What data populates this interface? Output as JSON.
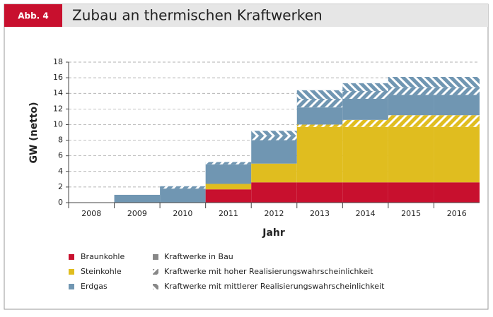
{
  "figure_label": "Abb. 4",
  "chart_data": {
    "type": "stacked-step",
    "title": "Zubau an thermischen Kraftwerken",
    "x_label": "Jahr",
    "y_label": "GW (netto)",
    "categories": [
      "2008",
      "2009",
      "2010",
      "2011",
      "2012",
      "2013",
      "2014",
      "2015",
      "2016"
    ],
    "ylim": [
      0,
      18
    ],
    "yticks": [
      0,
      2,
      4,
      6,
      8,
      10,
      12,
      14,
      16,
      18
    ],
    "grid": true,
    "statuses": [
      {
        "name": "Kraftwerke in Bau",
        "hatch": "solid",
        "key": "values"
      },
      {
        "name": "Kraftwerke mit hoher Realisierungswahrscheinlichkeit",
        "hatch": "forward",
        "key": "values_high"
      },
      {
        "name": "Kraftwerke mit mittlerer Realisierungswahrscheinlichkeit",
        "hatch": "backward",
        "key": "values_mid"
      }
    ],
    "series": [
      {
        "name": "Braunkohle",
        "color": "#c8102e",
        "values": [
          0,
          0,
          0,
          1.7,
          2.6,
          2.6,
          2.6,
          2.6,
          2.6
        ],
        "values_high": [
          0,
          0,
          0,
          0,
          0,
          0,
          0,
          0,
          0
        ],
        "values_mid": [
          0,
          0,
          0,
          0,
          0,
          0,
          0,
          0,
          0
        ]
      },
      {
        "name": "Steinkohle",
        "color": "#e0bd1f",
        "values": [
          0,
          0,
          0,
          0.7,
          2.4,
          7.1,
          7.1,
          7.1,
          7.1
        ],
        "values_high": [
          0,
          0,
          0,
          0,
          0,
          0.3,
          0.9,
          1.5,
          1.5
        ],
        "values_mid": [
          0,
          0,
          0,
          0,
          0,
          0,
          0,
          0,
          0
        ]
      },
      {
        "name": "Erdgas",
        "color": "#7096b2",
        "values": [
          0,
          1.0,
          1.8,
          2.5,
          3.0,
          2.2,
          2.7,
          2.6,
          2.6
        ],
        "values_high": [
          0,
          0,
          0.3,
          0.3,
          0.6,
          1.1,
          1.0,
          1.0,
          1.0
        ],
        "values_mid": [
          0,
          0,
          0,
          0,
          0.6,
          1.1,
          1.0,
          1.3,
          1.3
        ]
      }
    ]
  }
}
